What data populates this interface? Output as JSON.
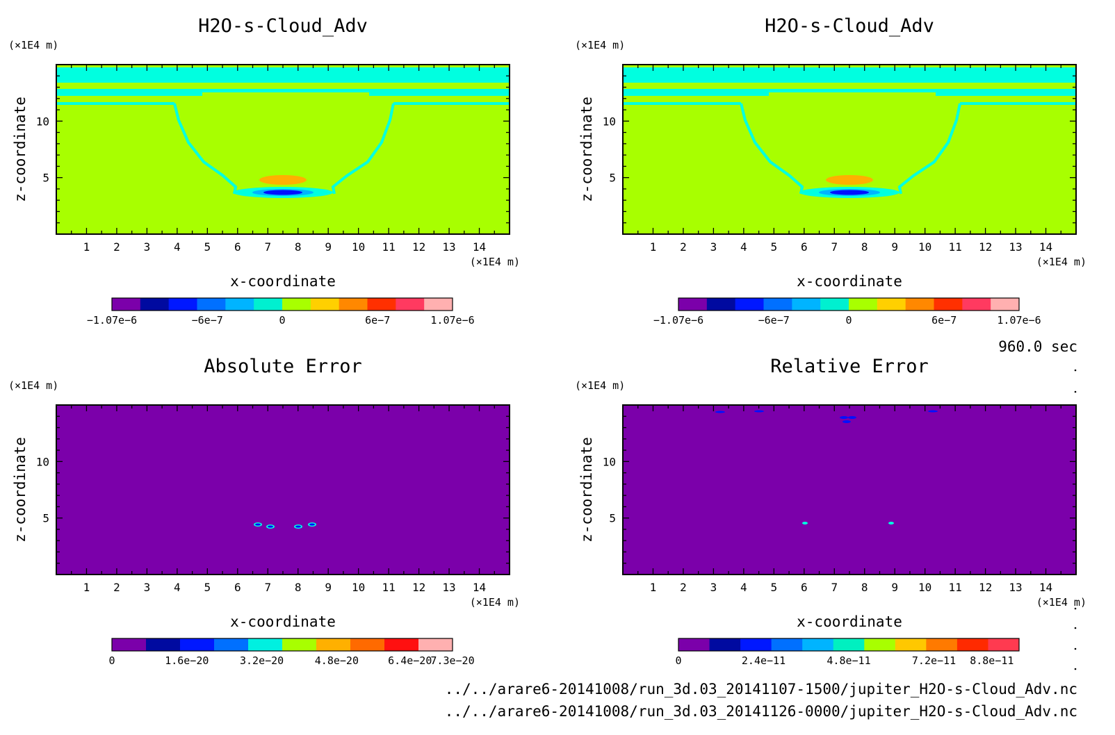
{
  "colors": {
    "background": "#a8ff00",
    "error_background": "#7b00aa",
    "cyan": "#00ffe0",
    "orange": "#ffb000",
    "blue": "#0010ff",
    "frame": "#000000"
  },
  "time_label": "960.0 sec",
  "footer": {
    "path1": "../../arare6-20141008/run_3d.03_20141107-1500/jupiter_H2O-s-Cloud_Adv.nc",
    "path2": "../../arare6-20141008/run_3d.03_20141126-0000/jupiter_H2O-s-Cloud_Adv.nc"
  },
  "chart_data": [
    {
      "type": "heatmap",
      "title": "H2O-s-Cloud_Adv",
      "xlabel": "x-coordinate",
      "ylabel": "z-coordinate",
      "x_unit": "(×1E4 m)",
      "y_unit": "(×1E4 m)",
      "x_ticks": [
        "1",
        "2",
        "3",
        "4",
        "5",
        "6",
        "7",
        "8",
        "9",
        "10",
        "11",
        "12",
        "13",
        "14"
      ],
      "y_ticks": [
        "5",
        "10"
      ],
      "xlim": [
        0,
        15
      ],
      "ylim": [
        0,
        15
      ],
      "colorbar": {
        "colors": [
          "#7b00aa",
          "#000aa0",
          "#0018ff",
          "#0070ff",
          "#00b4ff",
          "#00f0d0",
          "#a8ff00",
          "#ffd000",
          "#ff8800",
          "#ff3000",
          "#ff3a60",
          "#ffb0b0"
        ],
        "labels": [
          "−1.07e−6",
          "−6e−7",
          "0",
          "6e−7",
          "1.07e−6"
        ],
        "label_positions": [
          0,
          0.28,
          0.5,
          0.78,
          1.0
        ]
      }
    },
    {
      "type": "heatmap",
      "title": "H2O-s-Cloud_Adv",
      "xlabel": "x-coordinate",
      "ylabel": "z-coordinate",
      "x_unit": "(×1E4 m)",
      "y_unit": "(×1E4 m)",
      "x_ticks": [
        "1",
        "2",
        "3",
        "4",
        "5",
        "6",
        "7",
        "8",
        "9",
        "10",
        "11",
        "12",
        "13",
        "14"
      ],
      "y_ticks": [
        "5",
        "10"
      ],
      "xlim": [
        0,
        15
      ],
      "ylim": [
        0,
        15
      ],
      "colorbar": {
        "colors": [
          "#7b00aa",
          "#000aa0",
          "#0018ff",
          "#0070ff",
          "#00b4ff",
          "#00f0d0",
          "#a8ff00",
          "#ffd000",
          "#ff8800",
          "#ff3000",
          "#ff3a60",
          "#ffb0b0"
        ],
        "labels": [
          "−1.07e−6",
          "−6e−7",
          "0",
          "6e−7",
          "1.07e−6"
        ],
        "label_positions": [
          0,
          0.28,
          0.5,
          0.78,
          1.0
        ]
      }
    },
    {
      "type": "heatmap",
      "title": "Absolute Error",
      "xlabel": "x-coordinate",
      "ylabel": "z-coordinate",
      "x_unit": "(×1E4 m)",
      "y_unit": "(×1E4 m)",
      "x_ticks": [
        "1",
        "2",
        "3",
        "4",
        "5",
        "6",
        "7",
        "8",
        "9",
        "10",
        "11",
        "12",
        "13",
        "14"
      ],
      "y_ticks": [
        "5",
        "10"
      ],
      "xlim": [
        0,
        15
      ],
      "ylim": [
        0,
        15
      ],
      "colorbar": {
        "colors": [
          "#7b00aa",
          "#000aa0",
          "#0018ff",
          "#0070ff",
          "#00f0e0",
          "#a8ff00",
          "#ffb000",
          "#ff6a00",
          "#ff1010",
          "#ffb0b0"
        ],
        "labels": [
          "0",
          "1.6e−20",
          "3.2e−20",
          "4.8e−20",
          "6.4e−20",
          "7.3e−20"
        ],
        "label_positions": [
          0,
          0.22,
          0.44,
          0.66,
          0.875,
          1.0
        ]
      }
    },
    {
      "type": "heatmap",
      "title": "Relative Error",
      "xlabel": "x-coordinate",
      "ylabel": "z-coordinate",
      "x_unit": "(×1E4 m)",
      "y_unit": "(×1E4 m)",
      "x_ticks": [
        "1",
        "2",
        "3",
        "4",
        "5",
        "6",
        "7",
        "8",
        "9",
        "10",
        "11",
        "12",
        "13",
        "14"
      ],
      "y_ticks": [
        "5",
        "10"
      ],
      "xlim": [
        0,
        15
      ],
      "ylim": [
        0,
        15
      ],
      "colorbar": {
        "colors": [
          "#7b00aa",
          "#000aa0",
          "#0018ff",
          "#0070ff",
          "#00b4ff",
          "#00f0c0",
          "#a8ff00",
          "#ffc800",
          "#ff7a00",
          "#ff2a00",
          "#ff3a50"
        ],
        "labels": [
          "0",
          "2.4e−11",
          "4.8e−11",
          "7.2e−11",
          "8.8e−11"
        ],
        "label_positions": [
          0,
          0.25,
          0.5,
          0.75,
          0.92
        ]
      }
    }
  ]
}
